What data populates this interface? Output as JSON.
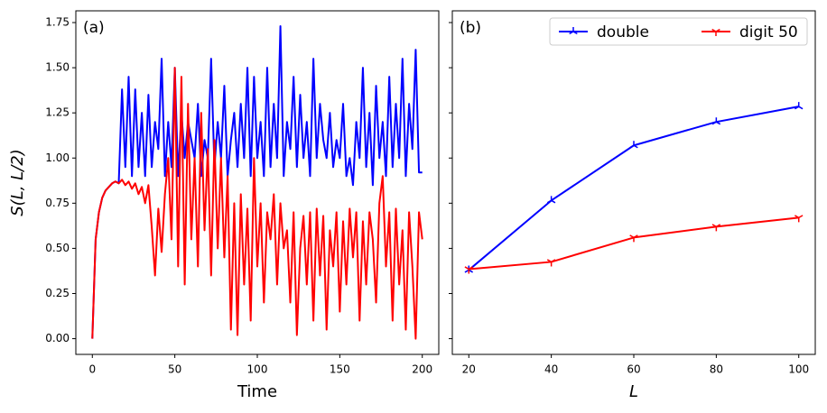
{
  "chart_data": [
    {
      "type": "line",
      "annotation": "(a)",
      "xlabel": "Time",
      "ylabel": "S(L, L/2)",
      "x": [
        0,
        2,
        4,
        6,
        8,
        10,
        12,
        14,
        16,
        18,
        20,
        22,
        24,
        26,
        28,
        30,
        32,
        34,
        36,
        38,
        40,
        42,
        44,
        46,
        48,
        50,
        52,
        54,
        56,
        58,
        60,
        62,
        64,
        66,
        68,
        70,
        72,
        74,
        76,
        78,
        80,
        82,
        84,
        86,
        88,
        90,
        92,
        94,
        96,
        98,
        100,
        102,
        104,
        106,
        108,
        110,
        112,
        114,
        116,
        118,
        120,
        122,
        124,
        126,
        128,
        130,
        132,
        134,
        136,
        138,
        140,
        142,
        144,
        146,
        148,
        150,
        152,
        154,
        156,
        158,
        160,
        162,
        164,
        166,
        168,
        170,
        172,
        174,
        176,
        178,
        180,
        182,
        184,
        186,
        188,
        190,
        192,
        194,
        196,
        198,
        200
      ],
      "series": [
        {
          "name": "double",
          "color": "#0000ff",
          "values": [
            0,
            0.55,
            0.7,
            0.78,
            0.82,
            0.84,
            0.86,
            0.87,
            0.86,
            1.38,
            0.95,
            1.45,
            0.9,
            1.38,
            0.95,
            1.25,
            0.9,
            1.35,
            0.95,
            1.2,
            1.05,
            1.55,
            0.9,
            1.2,
            0.95,
            1.5,
            0.9,
            1.25,
            1.0,
            1.2,
            1.1,
            1.0,
            1.3,
            0.9,
            1.1,
            1.0,
            1.55,
            0.95,
            1.2,
            1.0,
            1.4,
            0.9,
            1.1,
            1.25,
            0.95,
            1.3,
            1.0,
            1.5,
            0.9,
            1.45,
            1.0,
            1.2,
            0.9,
            1.5,
            0.95,
            1.3,
            1.0,
            1.73,
            0.9,
            1.2,
            1.05,
            1.45,
            0.95,
            1.35,
            1.0,
            1.2,
            0.9,
            1.55,
            1.0,
            1.3,
            1.1,
            1.0,
            1.25,
            0.95,
            1.1,
            1.0,
            1.3,
            0.9,
            1.0,
            0.85,
            1.2,
            1.0,
            1.5,
            0.95,
            1.25,
            0.85,
            1.4,
            1.0,
            1.2,
            0.9,
            1.45,
            0.95,
            1.3,
            1.0,
            1.55,
            0.9,
            1.3,
            1.05,
            1.6,
            0.92,
            0.92
          ]
        },
        {
          "name": "digit 50",
          "color": "#ff0000",
          "values": [
            0,
            0.55,
            0.7,
            0.78,
            0.82,
            0.84,
            0.86,
            0.87,
            0.86,
            0.88,
            0.85,
            0.87,
            0.83,
            0.86,
            0.8,
            0.84,
            0.75,
            0.85,
            0.62,
            0.35,
            0.72,
            0.48,
            0.8,
            1.0,
            0.55,
            1.5,
            0.4,
            1.45,
            0.3,
            1.3,
            0.55,
            1.0,
            0.4,
            1.25,
            0.6,
            1.05,
            0.35,
            1.1,
            0.5,
            1.0,
            0.45,
            0.9,
            0.05,
            0.75,
            0.02,
            0.8,
            0.3,
            0.72,
            0.1,
            1.0,
            0.4,
            0.75,
            0.2,
            0.7,
            0.55,
            0.8,
            0.3,
            0.75,
            0.5,
            0.6,
            0.2,
            0.7,
            0.02,
            0.5,
            0.68,
            0.3,
            0.7,
            0.1,
            0.72,
            0.35,
            0.68,
            0.05,
            0.6,
            0.4,
            0.7,
            0.15,
            0.65,
            0.3,
            0.72,
            0.45,
            0.7,
            0.1,
            0.65,
            0.3,
            0.7,
            0.55,
            0.2,
            0.75,
            0.9,
            0.4,
            0.7,
            0.1,
            0.72,
            0.3,
            0.6,
            0.05,
            0.7,
            0.4,
            0.0,
            0.7,
            0.55
          ]
        }
      ],
      "xlim": [
        -10,
        210
      ],
      "xticks": [
        0,
        50,
        100,
        150,
        200
      ],
      "ylim": [
        -0.087,
        1.815
      ],
      "yticks": [
        {
          "value": 0,
          "label": "0.00"
        },
        {
          "value": 0.25,
          "label": "0.25"
        },
        {
          "value": 0.5,
          "label": "0.50"
        },
        {
          "value": 0.75,
          "label": "0.75"
        },
        {
          "value": 1,
          "label": "1.00"
        },
        {
          "value": 1.25,
          "label": "1.25"
        },
        {
          "value": 1.5,
          "label": "1.50"
        },
        {
          "value": 1.75,
          "label": "1.75"
        }
      ],
      "ytick_labels": true
    },
    {
      "type": "line",
      "annotation": "(b)",
      "xlabel": "L",
      "x": [
        20,
        40,
        60,
        80,
        100
      ],
      "series": [
        {
          "name": "double",
          "color": "#0000ff",
          "marker": "tri_down",
          "values": [
            0.38,
            0.765,
            1.07,
            1.2,
            1.285
          ]
        },
        {
          "name": "digit 50",
          "color": "#ff0000",
          "marker": "tri_up",
          "values": [
            0.385,
            0.425,
            0.56,
            0.62,
            0.67
          ]
        }
      ],
      "xlim": [
        16,
        104
      ],
      "xticks": [
        20,
        40,
        60,
        80,
        100
      ],
      "ylim": [
        -0.087,
        1.815
      ],
      "yticks": [
        0,
        0.25,
        0.5,
        0.75,
        1,
        1.25,
        1.5,
        1.75
      ],
      "ytick_labels": false,
      "legend": "upper right"
    }
  ]
}
